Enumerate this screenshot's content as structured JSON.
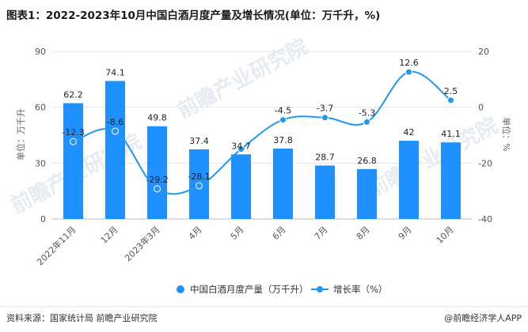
{
  "chart_data": {
    "type": "bar+line",
    "title": "图表1：2022-2023年10月中国白酒月度产量及增长情况(单位：万千升，%)",
    "categories": [
      "2022年11月",
      "12月",
      "2023年3月",
      "4月",
      "5月",
      "6月",
      "7月",
      "8月",
      "9月",
      "10月"
    ],
    "series": [
      {
        "name": "中国白酒月度产量（万千升）",
        "type": "bar",
        "axis": "left",
        "color": "#1e90ff",
        "values": [
          62.2,
          74.1,
          49.8,
          37.4,
          34.7,
          37.8,
          28.7,
          26.8,
          42,
          41.1
        ],
        "labels": [
          "62.2",
          "74.1",
          "49.8",
          "37.4",
          "34.7",
          "37.8",
          "28.7",
          "26.8",
          "42",
          "41.1"
        ]
      },
      {
        "name": "增长率（%）",
        "type": "line",
        "axis": "right",
        "color": "#2196f3",
        "values": [
          -12.3,
          -8.6,
          -29.2,
          -28.1,
          -15.0,
          -4.5,
          -3.7,
          -5.3,
          12.6,
          2.5
        ],
        "labels": [
          "-12.3",
          "-8.6",
          "-29.2",
          "-28.1",
          "",
          "-4.5",
          "-3.7",
          "-5.3",
          "12.6",
          "2.5"
        ]
      }
    ],
    "left_axis": {
      "title": "单位：万千升",
      "min": 0,
      "max": 90,
      "ticks": [
        0,
        30,
        60,
        90
      ]
    },
    "right_axis": {
      "title": "单位：%",
      "min": -40,
      "max": 20,
      "ticks": [
        -40,
        -20,
        0,
        20
      ]
    },
    "legend": {
      "position": "bottom-center"
    }
  },
  "footer": {
    "source": "资料来源：国家统计局 前瞻产业研究院",
    "brand": "@前瞻经济学人APP"
  },
  "watermark": {
    "text": "前瞻产业研究院"
  }
}
